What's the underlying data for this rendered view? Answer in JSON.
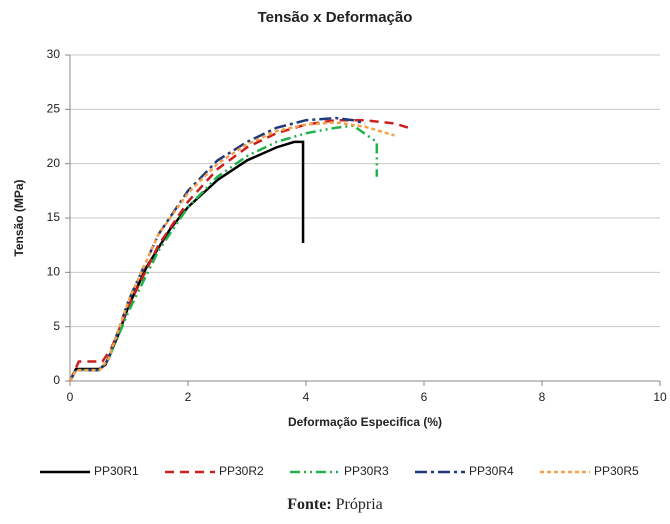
{
  "chart_data": {
    "type": "line",
    "title": "Tensão x Deformação",
    "x_label": "Deformação Especifica (%)",
    "y_label": "Tensão (MPa)",
    "xlim": [
      0,
      10
    ],
    "xticks": [
      0,
      2,
      4,
      6,
      8,
      10
    ],
    "ylim": [
      0,
      30
    ],
    "yticks": [
      0,
      5,
      10,
      15,
      20,
      25,
      30
    ],
    "grid": true,
    "legend": "bottom",
    "series": [
      {
        "name": "PP30R1",
        "color": "#000000",
        "dash": "none",
        "x": [
          0,
          0.1,
          0.5,
          0.6,
          0.8,
          1,
          1.3,
          1.7,
          2,
          2.5,
          3,
          3.5,
          3.8,
          3.95,
          3.95
        ],
        "values": [
          0,
          1.1,
          1.1,
          1.5,
          4,
          7,
          10.5,
          14,
          16,
          18.5,
          20.3,
          21.5,
          22,
          22,
          12.7
        ]
      },
      {
        "name": "PP30R2",
        "color": "#cc1f1f",
        "dash": "9,6",
        "x": [
          0,
          0.15,
          0.55,
          0.7,
          1,
          1.5,
          2,
          2.5,
          3,
          3.5,
          4,
          4.5,
          5,
          5.5,
          5.8
        ],
        "values": [
          0,
          1.8,
          1.8,
          3,
          7,
          12.5,
          16.5,
          19.5,
          21.5,
          22.8,
          23.6,
          24,
          24,
          23.7,
          23.2
        ]
      },
      {
        "name": "PP30R3",
        "color": "#1fb24a",
        "dash": "10,4,2,4,2,4",
        "x": [
          0,
          0.1,
          0.5,
          0.65,
          1,
          1.5,
          2,
          2.5,
          3,
          3.5,
          4,
          4.5,
          4.8,
          5.2,
          5.2
        ],
        "values": [
          0,
          1,
          1,
          2,
          6.5,
          12,
          16,
          18.8,
          20.7,
          22,
          22.8,
          23.3,
          23.5,
          22,
          18.8
        ]
      },
      {
        "name": "PP30R4",
        "color": "#1f3a7a",
        "dash": "12,4,3,4",
        "x": [
          0,
          0.1,
          0.5,
          0.65,
          1,
          1.5,
          2,
          2.5,
          3,
          3.5,
          4,
          4.5,
          4.8,
          5
        ],
        "values": [
          0,
          1,
          1,
          2,
          7.5,
          13.5,
          17.5,
          20.3,
          22,
          23.3,
          24,
          24.2,
          24,
          23.7
        ]
      },
      {
        "name": "PP30R5",
        "color": "#f5a04a",
        "dash": "4,3",
        "x": [
          0,
          0.1,
          0.5,
          0.65,
          1,
          1.5,
          2,
          2.5,
          3,
          3.5,
          4,
          4.5,
          5,
          5.5
        ],
        "values": [
          0,
          1,
          1,
          2,
          7.5,
          13.5,
          17.3,
          20,
          21.8,
          23,
          23.6,
          23.8,
          23.4,
          22.6
        ]
      }
    ]
  },
  "caption": {
    "label": "Fonte:",
    "text": "Própria"
  }
}
